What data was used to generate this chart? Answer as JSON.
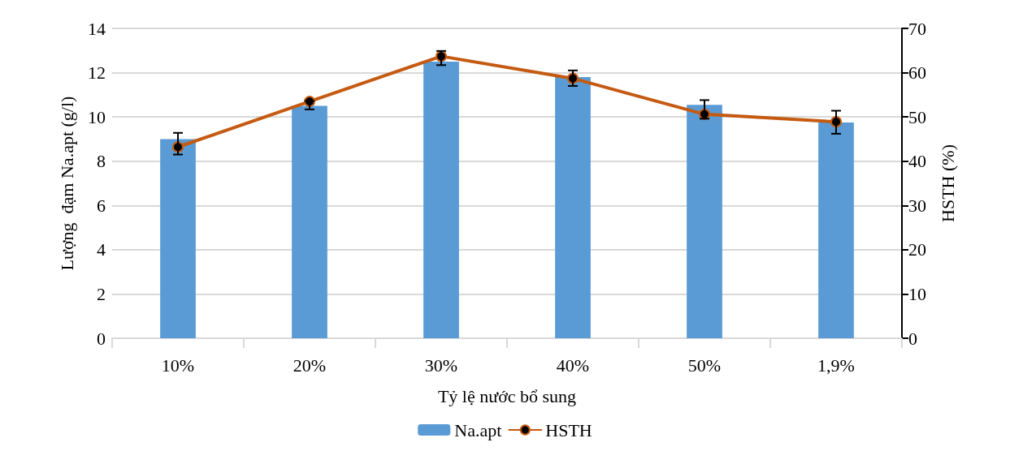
{
  "chart_data": {
    "type": "bar",
    "xlabel": "Tỷ lệ nước bổ sung",
    "ylabel": "Lượng  đạm Na.apt (g/l)",
    "y2label": "HSTH (%)",
    "categories": [
      "10%",
      "20%",
      "30%",
      "40%",
      "50%",
      "1,9%"
    ],
    "series": [
      {
        "name": "Na.apt",
        "color": "#5b9bd5",
        "values": [
          9.0,
          10.5,
          12.5,
          11.8,
          10.55,
          9.75
        ]
      },
      {
        "name": "HSTH",
        "type": "line",
        "axis": "y2",
        "color": "#c55a11",
        "marker": "circle",
        "values": [
          43.2,
          53.5,
          63.7,
          58.7,
          50.6,
          48.9
        ],
        "errors": [
          [
            41.5,
            46.4
          ],
          [
            51.7,
            53.6
          ],
          [
            61.7,
            64.9
          ],
          [
            57.0,
            60.5
          ],
          [
            49.6,
            53.8
          ],
          [
            46.2,
            51.4
          ]
        ]
      }
    ],
    "ylim": [
      0,
      14
    ],
    "yticks": [
      0,
      2,
      4,
      6,
      8,
      10,
      12,
      14
    ],
    "y2lim": [
      0,
      70
    ],
    "y2ticks": [
      0,
      10,
      20,
      30,
      40,
      50,
      60,
      70
    ],
    "grid": "y",
    "legend": "bottom"
  }
}
